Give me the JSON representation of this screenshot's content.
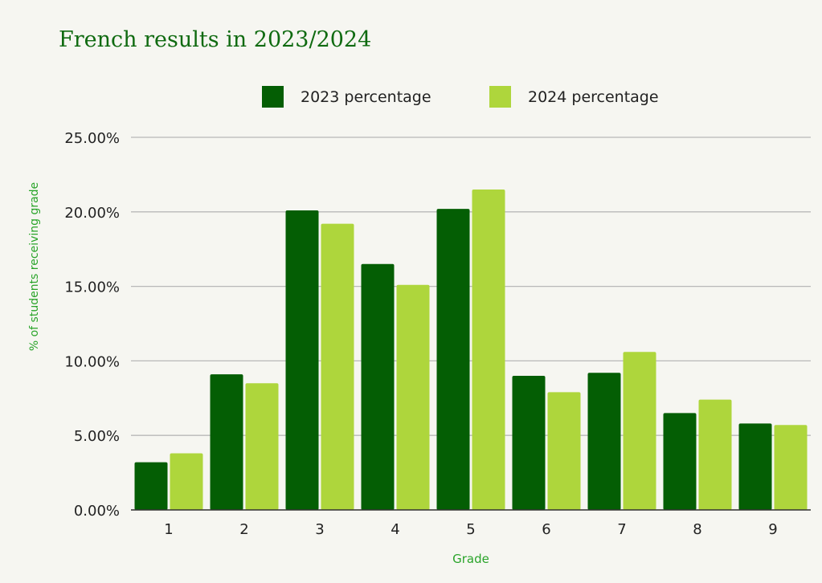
{
  "title": "French results in 2023/2024",
  "chart_data": {
    "type": "bar",
    "title": "French results in 2023/2024",
    "xlabel": "Grade",
    "ylabel": "% of students receiving grade",
    "categories": [
      "1",
      "2",
      "3",
      "4",
      "5",
      "6",
      "7",
      "8",
      "9"
    ],
    "series": [
      {
        "name": "2023 percentage",
        "color": "#045e04",
        "values": [
          3.2,
          9.1,
          20.1,
          16.5,
          20.2,
          9.0,
          9.2,
          6.5,
          5.8
        ]
      },
      {
        "name": "2024 percentage",
        "color": "#aed63c",
        "values": [
          3.8,
          8.5,
          19.2,
          15.1,
          21.5,
          7.9,
          10.6,
          7.4,
          5.7
        ]
      }
    ],
    "ylim": [
      0,
      25
    ],
    "yticks": [
      "0.00%",
      "5.00%",
      "10.00%",
      "15.00%",
      "20.00%",
      "25.00%"
    ],
    "grid": true,
    "legend_position": "top-center"
  },
  "colors": {
    "title": "#0f6a10",
    "axis_label": "#2aa42a",
    "tick_label": "#222222",
    "grid": "#b8b8b8",
    "background": "#f6f6f1"
  }
}
